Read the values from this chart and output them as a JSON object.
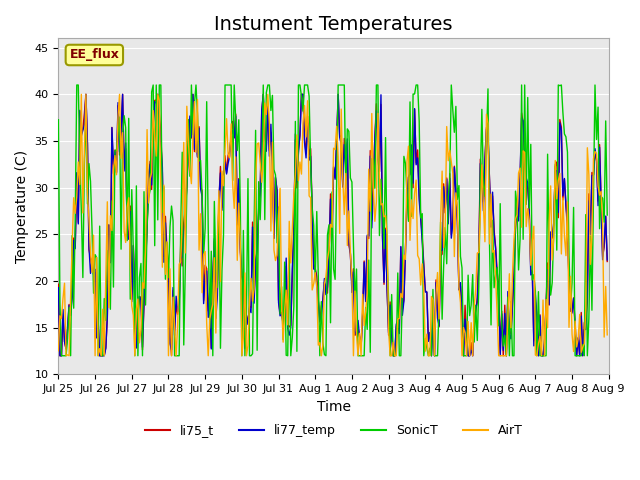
{
  "title": "Instument Temperatures",
  "xlabel": "Time",
  "ylabel": "Temperature (C)",
  "ylim": [
    10,
    46
  ],
  "xlim": [
    0,
    360
  ],
  "annotation": "EE_flux",
  "bg_color": "#e8e8e8",
  "line_colors": {
    "li75_t": "#cc0000",
    "li77_temp": "#0000cc",
    "SonicT": "#00cc00",
    "AirT": "#ffaa00"
  },
  "xtick_labels": [
    "Jul 25",
    "Jul 26",
    "Jul 27",
    "Jul 28",
    "Jul 29",
    "Jul 30",
    "Jul 31",
    "Aug 1",
    "Aug 2",
    "Aug 3",
    "Aug 4",
    "Aug 5",
    "Aug 6",
    "Aug 7",
    "Aug 8",
    "Aug 9"
  ],
  "xtick_positions": [
    0,
    24,
    48,
    72,
    96,
    120,
    144,
    168,
    192,
    216,
    240,
    264,
    288,
    312,
    336,
    360
  ],
  "ytick_labels": [
    "10",
    "15",
    "20",
    "25",
    "30",
    "35",
    "40",
    "45"
  ],
  "ytick_positions": [
    10,
    15,
    20,
    25,
    30,
    35,
    40,
    45
  ],
  "title_fontsize": 14,
  "axis_label_fontsize": 10,
  "tick_fontsize": 8,
  "legend_fontsize": 9,
  "num_hours": 360
}
